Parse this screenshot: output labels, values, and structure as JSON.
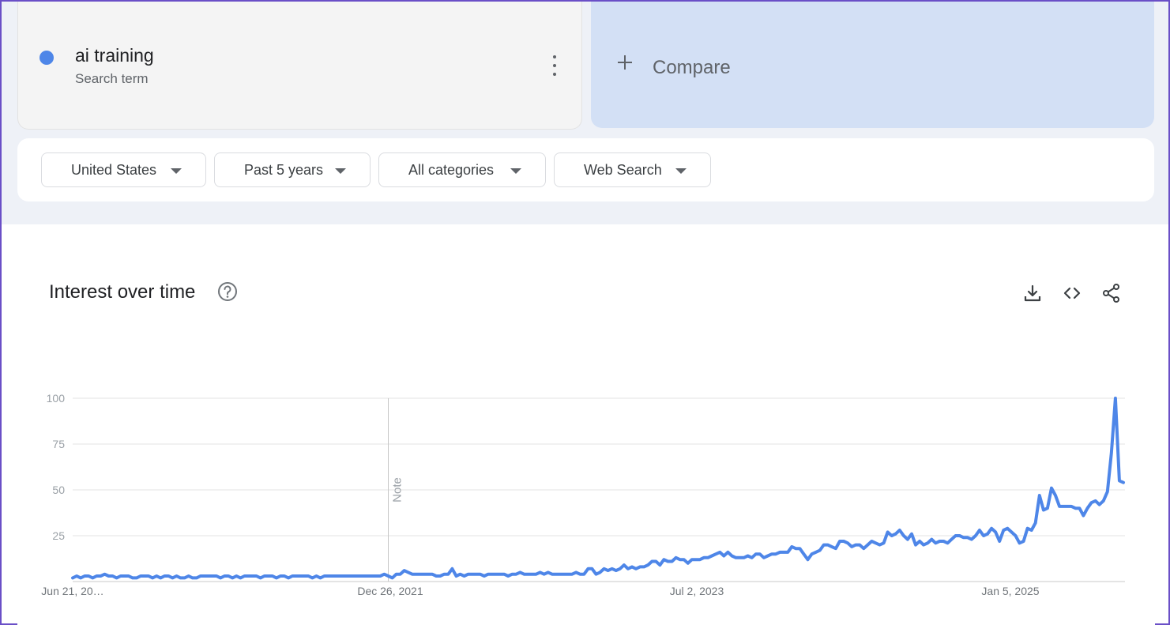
{
  "search_term": {
    "name": "ai training",
    "subtitle": "Search term",
    "color": "#4e86e8",
    "menu_icon": "more-vert-icon"
  },
  "compare": {
    "label": "Compare",
    "icon": "plus-icon"
  },
  "filters": [
    {
      "label": "United States",
      "icon": "caret-down-icon"
    },
    {
      "label": "Past 5 years",
      "icon": "caret-down-icon"
    },
    {
      "label": "All categories",
      "icon": "caret-down-icon"
    },
    {
      "label": "Web Search",
      "icon": "caret-down-icon"
    }
  ],
  "interest_section": {
    "title": "Interest over time",
    "help_icon": "help-circle-icon",
    "tools": [
      "download-icon",
      "embed-code-icon",
      "share-icon"
    ]
  },
  "chart_data": {
    "type": "line",
    "ylim": [
      0,
      100
    ],
    "y_ticks": [
      "100",
      "75",
      "50",
      "25"
    ],
    "x_tick_labels": [
      "Jun 21, 20…",
      "Dec 26, 2021",
      "Jul 2, 2023",
      "Jan 5, 2025"
    ],
    "annotation": {
      "label": "Note",
      "x_index": 79
    },
    "grid": true,
    "series": [
      {
        "color": "#4e86e8",
        "values": [
          2,
          3,
          2,
          3,
          3,
          2,
          3,
          3,
          4,
          3,
          3,
          2,
          3,
          3,
          3,
          2,
          2,
          3,
          3,
          3,
          2,
          3,
          2,
          3,
          3,
          2,
          3,
          2,
          2,
          3,
          2,
          2,
          3,
          3,
          3,
          3,
          3,
          2,
          3,
          3,
          2,
          3,
          2,
          3,
          3,
          3,
          3,
          2,
          3,
          3,
          3,
          2,
          3,
          3,
          2,
          3,
          3,
          3,
          3,
          3,
          2,
          3,
          2,
          3,
          3,
          3,
          3,
          3,
          3,
          3,
          3,
          3,
          3,
          3,
          3,
          3,
          3,
          3,
          4,
          3,
          2,
          4,
          4,
          6,
          5,
          4,
          4,
          4,
          4,
          4,
          4,
          3,
          3,
          4,
          4,
          7,
          3,
          4,
          3,
          4,
          4,
          4,
          4,
          3,
          4,
          4,
          4,
          4,
          4,
          3,
          4,
          4,
          5,
          4,
          4,
          4,
          4,
          5,
          4,
          5,
          4,
          4,
          4,
          4,
          4,
          4,
          5,
          4,
          4,
          7,
          7,
          4,
          5,
          7,
          6,
          7,
          6,
          7,
          9,
          7,
          8,
          7,
          8,
          8,
          9,
          11,
          11,
          9,
          12,
          11,
          11,
          13,
          12,
          12,
          10,
          12,
          12,
          12,
          13,
          13,
          14,
          15,
          16,
          14,
          16,
          14,
          13,
          13,
          13,
          14,
          13,
          15,
          15,
          13,
          14,
          15,
          15,
          16,
          16,
          16,
          19,
          18,
          18,
          15,
          12,
          15,
          16,
          17,
          20,
          20,
          19,
          18,
          22,
          22,
          21,
          19,
          20,
          20,
          18,
          20,
          22,
          21,
          20,
          21,
          27,
          25,
          26,
          28,
          25,
          23,
          26,
          20,
          22,
          20,
          21,
          23,
          21,
          22,
          22,
          21,
          23,
          25,
          25,
          24,
          24,
          23,
          25,
          28,
          25,
          26,
          29,
          27,
          22,
          28,
          29,
          27,
          25,
          21,
          22,
          29,
          28,
          32,
          47,
          39,
          40,
          51,
          47,
          41,
          41,
          41,
          41,
          40,
          40,
          36,
          40,
          43,
          44,
          42,
          44,
          49,
          70,
          100,
          55,
          54
        ]
      }
    ]
  }
}
